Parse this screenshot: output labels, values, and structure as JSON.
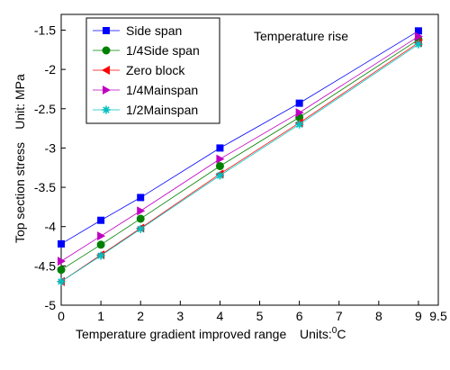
{
  "chart_data": {
    "type": "line",
    "annotation": "Temperature rise",
    "xlabel": "Temperature gradient improved range",
    "xunits_prefix": "Units:",
    "xunits_sup": "0",
    "xunits_suffix": "C",
    "ylabel": "Top section stress",
    "yunits": "Unit: MPa",
    "xlim": [
      0,
      9.5
    ],
    "ylim": [
      -5,
      -1.3
    ],
    "xticks": [
      0,
      1,
      2,
      3,
      4,
      5,
      6,
      7,
      8,
      9,
      9.5
    ],
    "xtick_labels": [
      "0",
      "1",
      "2",
      "3",
      "4",
      "5",
      "6",
      "7",
      "8",
      "9",
      "9.5"
    ],
    "yticks": [
      -5,
      -4.5,
      -4,
      -3.5,
      -3,
      -2.5,
      -2,
      -1.5
    ],
    "ytick_labels": [
      "-5",
      "-4.5",
      "-4",
      "-3.5",
      "-3",
      "-2.5",
      "-2",
      "-1.5"
    ],
    "grid": false,
    "legend_position": "top-left",
    "x": [
      0,
      1,
      2,
      4,
      6,
      9
    ],
    "series": [
      {
        "name": "Side span",
        "color": "#0000ff",
        "marker": "square",
        "values": [
          -4.22,
          -3.92,
          -3.63,
          -3.0,
          -2.43,
          -1.51
        ]
      },
      {
        "name": "1/4Side span",
        "color": "#008000",
        "marker": "circle",
        "values": [
          -4.55,
          -4.23,
          -3.9,
          -3.23,
          -2.61,
          -1.62
        ]
      },
      {
        "name": "Zero block",
        "color": "#ff0000",
        "marker": "triangle-left",
        "values": [
          -4.7,
          -4.36,
          -4.02,
          -3.33,
          -2.68,
          -1.66
        ]
      },
      {
        "name": "1/4Mainspan",
        "color": "#c000c0",
        "marker": "triangle-right",
        "values": [
          -4.44,
          -4.12,
          -3.8,
          -3.14,
          -2.55,
          -1.58
        ]
      },
      {
        "name": "1/2Mainspan",
        "color": "#00c0c0",
        "marker": "star",
        "values": [
          -4.7,
          -4.37,
          -4.03,
          -3.35,
          -2.7,
          -1.68
        ]
      }
    ]
  }
}
